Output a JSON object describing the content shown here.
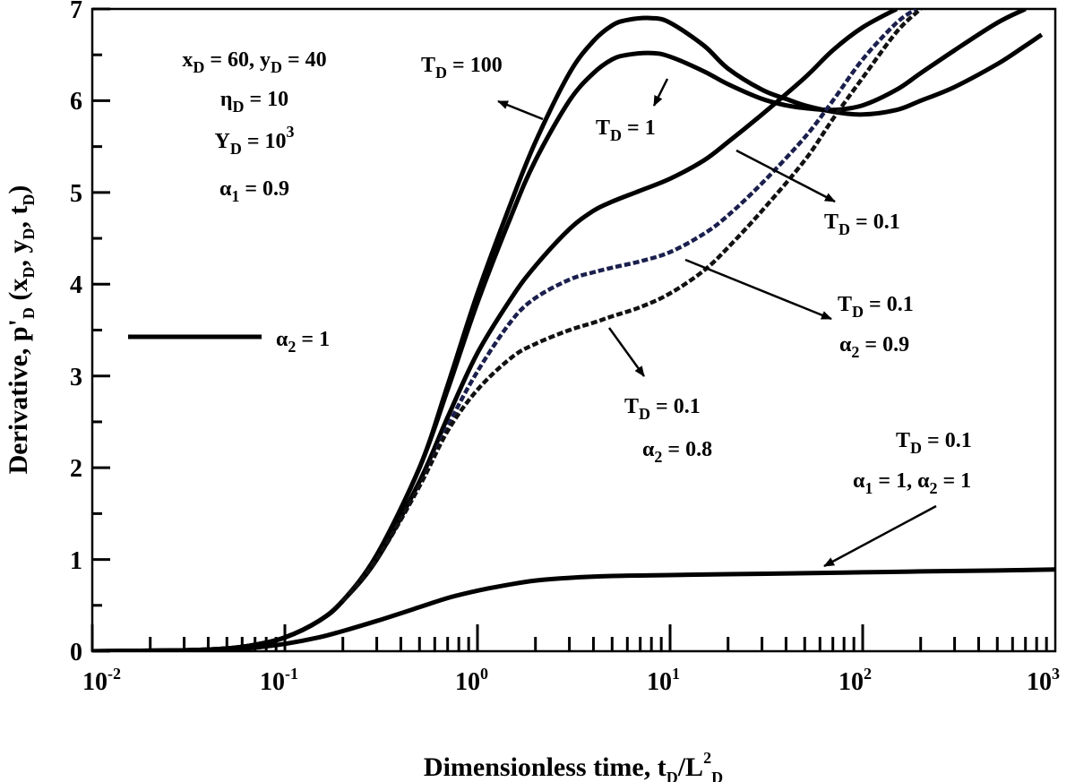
{
  "chart_data": {
    "type": "line",
    "xscale": "log",
    "xlim": [
      0.01,
      1000
    ],
    "ylim": [
      0,
      7
    ],
    "grid": false,
    "xlabel": {
      "main": "Dimensionless time, t",
      "sub1": "D",
      "mid": "/L",
      "sup": "2",
      "sub2": "D"
    },
    "ylabel": {
      "main": "Derivative, p'",
      "sub1": "D",
      "mid1": " (x",
      "sub2": "D",
      "mid2": ", y",
      "sub3": "D",
      "mid3": ", t",
      "sub4": "D",
      "end": ")"
    },
    "y_ticks": [
      "0",
      "1",
      "2",
      "3",
      "4",
      "5",
      "6",
      "7"
    ],
    "x_ticks": [
      {
        "base": "10",
        "exp": "-2",
        "value": 0.01
      },
      {
        "base": "10",
        "exp": "-1",
        "value": 0.1
      },
      {
        "base": "10",
        "exp": "0",
        "value": 1
      },
      {
        "base": "10",
        "exp": "1",
        "value": 10
      },
      {
        "base": "10",
        "exp": "2",
        "value": 100
      },
      {
        "base": "10",
        "exp": "3",
        "value": 1000
      }
    ],
    "params": [
      {
        "main": "x",
        "sub1": "D",
        "mid": " = 60, y",
        "sub2": "D",
        "end": " = 40"
      },
      {
        "main": "η",
        "sub1": "D",
        "end": " = 10"
      },
      {
        "main": "Y",
        "sub1": "D",
        "mid": " = 10",
        "sup": "3"
      },
      {
        "main": "α",
        "sub1": "1",
        "end": " = 0.9"
      }
    ],
    "legend": [
      {
        "label_main": "α",
        "label_sub": "2",
        "label_end": " =  1",
        "style": "solid"
      }
    ],
    "series": [
      {
        "TD": "100",
        "alpha2": "1",
        "style": "solid",
        "color": "#000000",
        "x": [
          0.01,
          0.03,
          0.05,
          0.07,
          0.1,
          0.15,
          0.2,
          0.3,
          0.5,
          0.7,
          1,
          1.5,
          2,
          3,
          4,
          5,
          6,
          8,
          10,
          15,
          20,
          30,
          40,
          50,
          70,
          100,
          150,
          200,
          300,
          500,
          700,
          850
        ],
        "y": [
          0,
          0.01,
          0.03,
          0.07,
          0.15,
          0.33,
          0.55,
          1.05,
          2.0,
          2.9,
          3.9,
          4.9,
          5.55,
          6.3,
          6.65,
          6.82,
          6.88,
          6.9,
          6.85,
          6.6,
          6.35,
          6.12,
          6.02,
          5.95,
          5.88,
          5.85,
          5.9,
          6.0,
          6.15,
          6.4,
          6.6,
          6.72
        ]
      },
      {
        "TD": "1",
        "alpha2": "1",
        "style": "solid",
        "color": "#000000",
        "x": [
          0.01,
          0.03,
          0.05,
          0.07,
          0.1,
          0.15,
          0.2,
          0.3,
          0.5,
          0.7,
          1,
          1.5,
          2,
          3,
          4,
          5,
          6,
          8,
          10,
          15,
          20,
          30,
          40,
          50,
          70,
          100,
          150,
          200,
          300,
          500,
          700
        ],
        "y": [
          0,
          0.01,
          0.03,
          0.07,
          0.15,
          0.33,
          0.55,
          1.05,
          2.0,
          2.85,
          3.8,
          4.75,
          5.35,
          6.0,
          6.3,
          6.45,
          6.5,
          6.52,
          6.48,
          6.32,
          6.18,
          6.02,
          5.95,
          5.92,
          5.9,
          5.95,
          6.12,
          6.3,
          6.55,
          6.85,
          7.0
        ]
      },
      {
        "TD": "0.1",
        "alpha2": "1",
        "style": "solid",
        "color": "#000000",
        "x": [
          0.01,
          0.03,
          0.05,
          0.07,
          0.1,
          0.15,
          0.2,
          0.3,
          0.5,
          0.7,
          1,
          1.5,
          2,
          3,
          4,
          5,
          7,
          10,
          15,
          20,
          30,
          50,
          70,
          100,
          150
        ],
        "y": [
          0,
          0.01,
          0.03,
          0.07,
          0.15,
          0.33,
          0.55,
          1.0,
          1.85,
          2.55,
          3.25,
          3.85,
          4.2,
          4.6,
          4.8,
          4.9,
          5.02,
          5.15,
          5.35,
          5.55,
          5.85,
          6.25,
          6.55,
          6.8,
          7.0
        ]
      },
      {
        "TD": "0.1",
        "alpha2": "0.9",
        "style": "dashed",
        "color": "#1a1f4d",
        "x": [
          0.2,
          0.3,
          0.5,
          0.7,
          1,
          1.5,
          2,
          3,
          4,
          5,
          7,
          10,
          15,
          20,
          30,
          50,
          70,
          100,
          150,
          190
        ],
        "y": [
          0.55,
          1.0,
          1.8,
          2.45,
          3.05,
          3.6,
          3.85,
          4.05,
          4.13,
          4.18,
          4.25,
          4.35,
          4.55,
          4.75,
          5.1,
          5.6,
          6.0,
          6.45,
          6.85,
          7.0
        ]
      },
      {
        "TD": "0.1",
        "alpha2": "0.8",
        "style": "dashed",
        "color": "#111111",
        "x": [
          0.2,
          0.3,
          0.5,
          0.7,
          1,
          1.5,
          2,
          3,
          4,
          5,
          7,
          10,
          15,
          20,
          30,
          50,
          70,
          100,
          150,
          200
        ],
        "y": [
          0.55,
          1.0,
          1.8,
          2.4,
          2.85,
          3.2,
          3.35,
          3.5,
          3.58,
          3.65,
          3.75,
          3.9,
          4.15,
          4.4,
          4.8,
          5.35,
          5.8,
          6.25,
          6.75,
          7.0
        ]
      },
      {
        "TD": "0.1",
        "alpha1": "1",
        "alpha2": "1",
        "style": "solid",
        "color": "#000000",
        "x": [
          0.01,
          0.03,
          0.05,
          0.07,
          0.1,
          0.15,
          0.2,
          0.3,
          0.5,
          0.7,
          1,
          1.5,
          2,
          3,
          5,
          10,
          20,
          50,
          100,
          200,
          500,
          1000
        ],
        "y": [
          0,
          0,
          0.01,
          0.04,
          0.08,
          0.15,
          0.22,
          0.33,
          0.48,
          0.58,
          0.66,
          0.73,
          0.77,
          0.8,
          0.82,
          0.83,
          0.84,
          0.85,
          0.86,
          0.87,
          0.88,
          0.89
        ]
      }
    ],
    "annotations": [
      {
        "id": "td100",
        "lines": [
          {
            "main": "T",
            "sub1": "D",
            "end": " = 100"
          }
        ]
      },
      {
        "id": "td1",
        "lines": [
          {
            "main": "T",
            "sub1": "D",
            "end": " = 1"
          }
        ]
      },
      {
        "id": "td01",
        "lines": [
          {
            "main": "T",
            "sub1": "D",
            "end": " = 0.1"
          }
        ]
      },
      {
        "id": "td01a09",
        "lines": [
          {
            "main": "T",
            "sub1": "D",
            "end": " = 0.1"
          },
          {
            "main": "α",
            "sub1": "2",
            "end": " = 0.9"
          }
        ]
      },
      {
        "id": "td01a08",
        "lines": [
          {
            "main": "T",
            "sub1": "D",
            "end": " = 0.1"
          },
          {
            "main": "α",
            "sub1": "2",
            "end": " = 0.8"
          }
        ]
      },
      {
        "id": "td01a1",
        "lines": [
          {
            "main": "T",
            "sub1": "D",
            "end": " = 0.1"
          },
          {
            "main": "α",
            "sub1": "1",
            "mid": " = 1, α",
            "sub2": "2",
            "end": " = 1"
          }
        ]
      }
    ]
  }
}
